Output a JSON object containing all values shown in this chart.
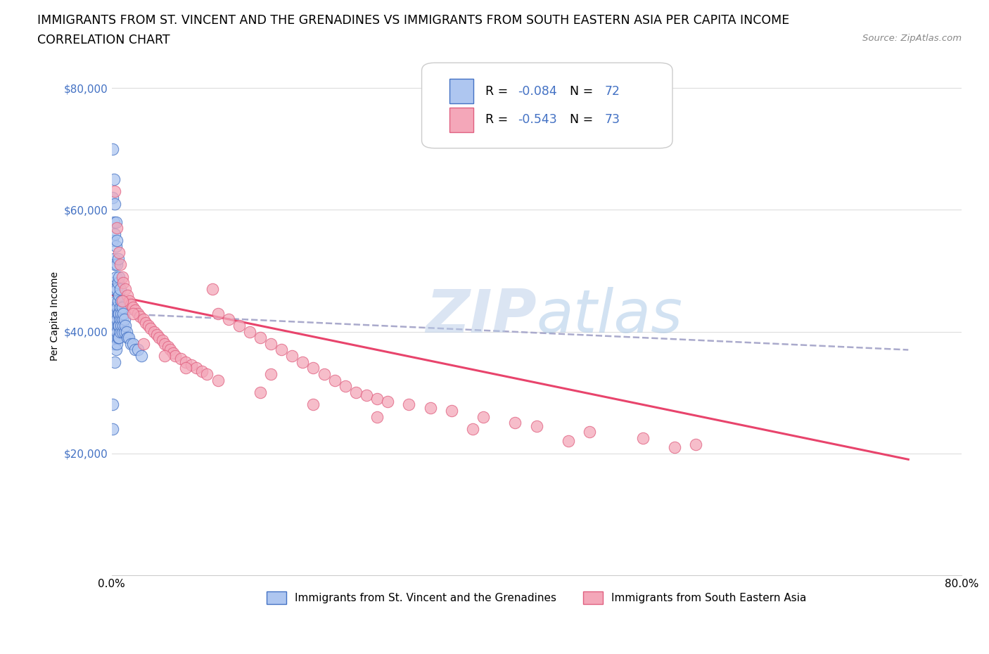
{
  "title_line1": "IMMIGRANTS FROM ST. VINCENT AND THE GRENADINES VS IMMIGRANTS FROM SOUTH EASTERN ASIA PER CAPITA INCOME",
  "title_line2": "CORRELATION CHART",
  "source_text": "Source: ZipAtlas.com",
  "ylabel": "Per Capita Income",
  "xmin": 0.0,
  "xmax": 0.8,
  "ymin": 0,
  "ymax": 85000,
  "yticks": [
    0,
    20000,
    40000,
    60000,
    80000
  ],
  "ytick_labels": [
    "",
    "$20,000",
    "$40,000",
    "$60,000",
    "$80,000"
  ],
  "legend_label1": "Immigrants from St. Vincent and the Grenadines",
  "legend_label2": "Immigrants from South Eastern Asia",
  "r1": -0.084,
  "n1": 72,
  "r2": -0.543,
  "n2": 73,
  "color1": "#aec6f0",
  "color2": "#f4a7b9",
  "edge_color1": "#4472c4",
  "edge_color2": "#e06080",
  "line_color2": "#e8446c",
  "watermark_color": "#c8d8f0",
  "title_fontsize": 12.5,
  "axis_label_fontsize": 10,
  "tick_fontsize": 11,
  "scatter1_x": [
    0.001,
    0.001,
    0.001,
    0.001,
    0.001,
    0.002,
    0.002,
    0.002,
    0.002,
    0.002,
    0.002,
    0.002,
    0.003,
    0.003,
    0.003,
    0.003,
    0.003,
    0.003,
    0.003,
    0.003,
    0.003,
    0.004,
    0.004,
    0.004,
    0.004,
    0.004,
    0.004,
    0.004,
    0.004,
    0.005,
    0.005,
    0.005,
    0.005,
    0.005,
    0.005,
    0.005,
    0.006,
    0.006,
    0.006,
    0.006,
    0.006,
    0.006,
    0.007,
    0.007,
    0.007,
    0.007,
    0.007,
    0.008,
    0.008,
    0.008,
    0.008,
    0.009,
    0.009,
    0.009,
    0.01,
    0.01,
    0.01,
    0.011,
    0.011,
    0.012,
    0.012,
    0.013,
    0.014,
    0.015,
    0.016,
    0.018,
    0.02,
    0.022,
    0.025,
    0.001,
    0.001,
    0.028
  ],
  "scatter1_y": [
    70000,
    62000,
    55000,
    48000,
    43000,
    65000,
    58000,
    52000,
    47000,
    44000,
    42000,
    38000,
    61000,
    56000,
    51000,
    47000,
    44000,
    42000,
    40000,
    38000,
    35000,
    58000,
    54000,
    49000,
    45000,
    43000,
    41000,
    39000,
    37000,
    55000,
    51000,
    47000,
    44000,
    42000,
    40000,
    38000,
    52000,
    48000,
    45000,
    43000,
    41000,
    39000,
    49000,
    46000,
    43000,
    41000,
    39000,
    47000,
    44000,
    42000,
    40000,
    45000,
    43000,
    41000,
    44000,
    42000,
    40000,
    43000,
    41000,
    42000,
    40000,
    41000,
    40000,
    39000,
    39000,
    38000,
    38000,
    37000,
    37000,
    28000,
    24000,
    36000
  ],
  "scatter2_x": [
    0.003,
    0.005,
    0.007,
    0.008,
    0.01,
    0.011,
    0.013,
    0.015,
    0.017,
    0.018,
    0.02,
    0.022,
    0.025,
    0.027,
    0.03,
    0.032,
    0.035,
    0.037,
    0.04,
    0.043,
    0.045,
    0.048,
    0.05,
    0.053,
    0.055,
    0.058,
    0.06,
    0.065,
    0.07,
    0.075,
    0.08,
    0.085,
    0.09,
    0.095,
    0.1,
    0.11,
    0.12,
    0.13,
    0.14,
    0.15,
    0.16,
    0.17,
    0.18,
    0.19,
    0.2,
    0.21,
    0.22,
    0.23,
    0.24,
    0.25,
    0.26,
    0.28,
    0.3,
    0.32,
    0.35,
    0.38,
    0.4,
    0.45,
    0.5,
    0.55,
    0.01,
    0.02,
    0.03,
    0.05,
    0.07,
    0.1,
    0.14,
    0.19,
    0.25,
    0.34,
    0.43,
    0.53,
    0.15
  ],
  "scatter2_y": [
    63000,
    57000,
    53000,
    51000,
    49000,
    48000,
    47000,
    46000,
    45000,
    44500,
    44000,
    43500,
    43000,
    42500,
    42000,
    41500,
    41000,
    40500,
    40000,
    39500,
    39000,
    38500,
    38000,
    37500,
    37000,
    36500,
    36000,
    35500,
    35000,
    34500,
    34000,
    33500,
    33000,
    47000,
    43000,
    42000,
    41000,
    40000,
    39000,
    38000,
    37000,
    36000,
    35000,
    34000,
    33000,
    32000,
    31000,
    30000,
    29500,
    29000,
    28500,
    28000,
    27500,
    27000,
    26000,
    25000,
    24500,
    23500,
    22500,
    21500,
    45000,
    43000,
    38000,
    36000,
    34000,
    32000,
    30000,
    28000,
    26000,
    24000,
    22000,
    21000,
    33000
  ],
  "line1_x0": 0.0,
  "line1_x1": 0.75,
  "line1_y0": 43000,
  "line1_y1": 37000,
  "line2_x0": 0.0,
  "line2_x1": 0.75,
  "line2_y0": 46000,
  "line2_y1": 19000
}
